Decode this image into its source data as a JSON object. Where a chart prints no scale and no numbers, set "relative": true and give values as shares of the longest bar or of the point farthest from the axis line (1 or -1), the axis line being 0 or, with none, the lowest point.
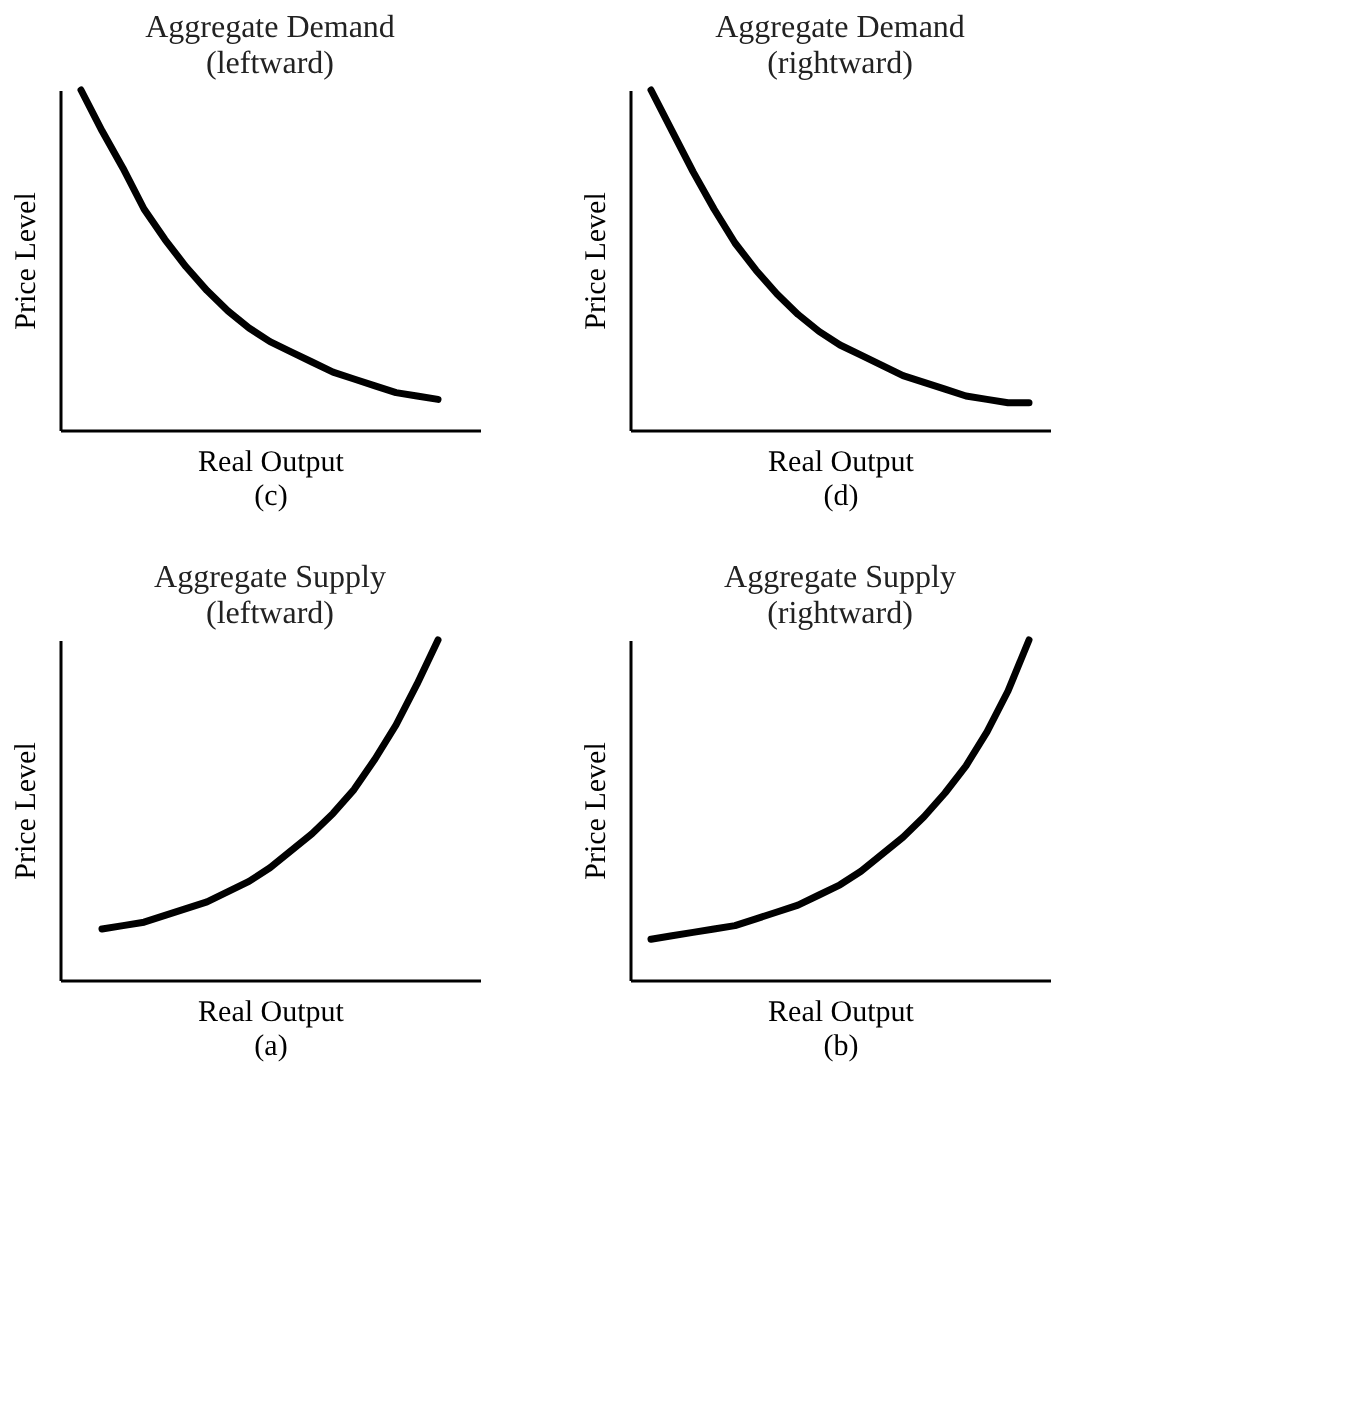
{
  "chart_data": [
    {
      "type": "line",
      "relative": true,
      "title": "Aggregate Demand\n(leftward)",
      "xlabel": "Real Output",
      "ylabel": "Price Level",
      "annotations": [
        "(c)"
      ],
      "categories": [
        null,
        null,
        null,
        null,
        null,
        null,
        null,
        null,
        null,
        null,
        null,
        null,
        null,
        null,
        null,
        null,
        null,
        null,
        null,
        null,
        null
      ],
      "series": [
        {
          "color": "#000000",
          "values": [
            null,
            1.0,
            0.88,
            0.77,
            0.65,
            0.56,
            0.48,
            0.41,
            0.35,
            0.3,
            0.26,
            0.23,
            0.2,
            0.17,
            0.15,
            0.13,
            0.11,
            0.1,
            0.09,
            null,
            null
          ]
        }
      ]
    },
    {
      "type": "line",
      "relative": true,
      "title": "Aggregate Demand\n(rightward)",
      "xlabel": "Real Output",
      "ylabel": "Price Level",
      "annotations": [
        "(d)"
      ],
      "categories": [
        null,
        null,
        null,
        null,
        null,
        null,
        null,
        null,
        null,
        null,
        null,
        null,
        null,
        null,
        null,
        null,
        null,
        null,
        null,
        null,
        null
      ],
      "series": [
        {
          "color": "#000000",
          "values": [
            null,
            1.0,
            0.88,
            0.76,
            0.65,
            0.55,
            0.47,
            0.4,
            0.34,
            0.29,
            0.25,
            0.22,
            0.19,
            0.16,
            0.14,
            0.12,
            0.1,
            0.09,
            0.08,
            0.08,
            null
          ]
        }
      ]
    },
    {
      "type": "line",
      "relative": true,
      "title": "Aggregate Supply\n(leftward)",
      "xlabel": "Real Output",
      "ylabel": "Price Level",
      "annotations": [
        "(a)"
      ],
      "categories": [
        null,
        null,
        null,
        null,
        null,
        null,
        null,
        null,
        null,
        null,
        null,
        null,
        null,
        null,
        null,
        null,
        null,
        null,
        null,
        null,
        null
      ],
      "series": [
        {
          "color": "#000000",
          "values": [
            null,
            null,
            0.15,
            0.16,
            0.17,
            0.19,
            0.21,
            0.23,
            0.26,
            0.29,
            0.33,
            0.38,
            0.43,
            0.49,
            0.56,
            0.65,
            0.75,
            0.87,
            1.0,
            null,
            null
          ]
        }
      ]
    },
    {
      "type": "line",
      "relative": true,
      "title": "Aggregate Supply\n(rightward)",
      "xlabel": "Real Output",
      "ylabel": "Price Level",
      "annotations": [
        "(b)"
      ],
      "categories": [
        null,
        null,
        null,
        null,
        null,
        null,
        null,
        null,
        null,
        null,
        null,
        null,
        null,
        null,
        null,
        null,
        null,
        null,
        null,
        null,
        null
      ],
      "series": [
        {
          "color": "#000000",
          "values": [
            null,
            0.12,
            0.13,
            0.14,
            0.15,
            0.16,
            0.18,
            0.2,
            0.22,
            0.25,
            0.28,
            0.32,
            0.37,
            0.42,
            0.48,
            0.55,
            0.63,
            0.73,
            0.85,
            1.0,
            null
          ]
        }
      ]
    }
  ]
}
